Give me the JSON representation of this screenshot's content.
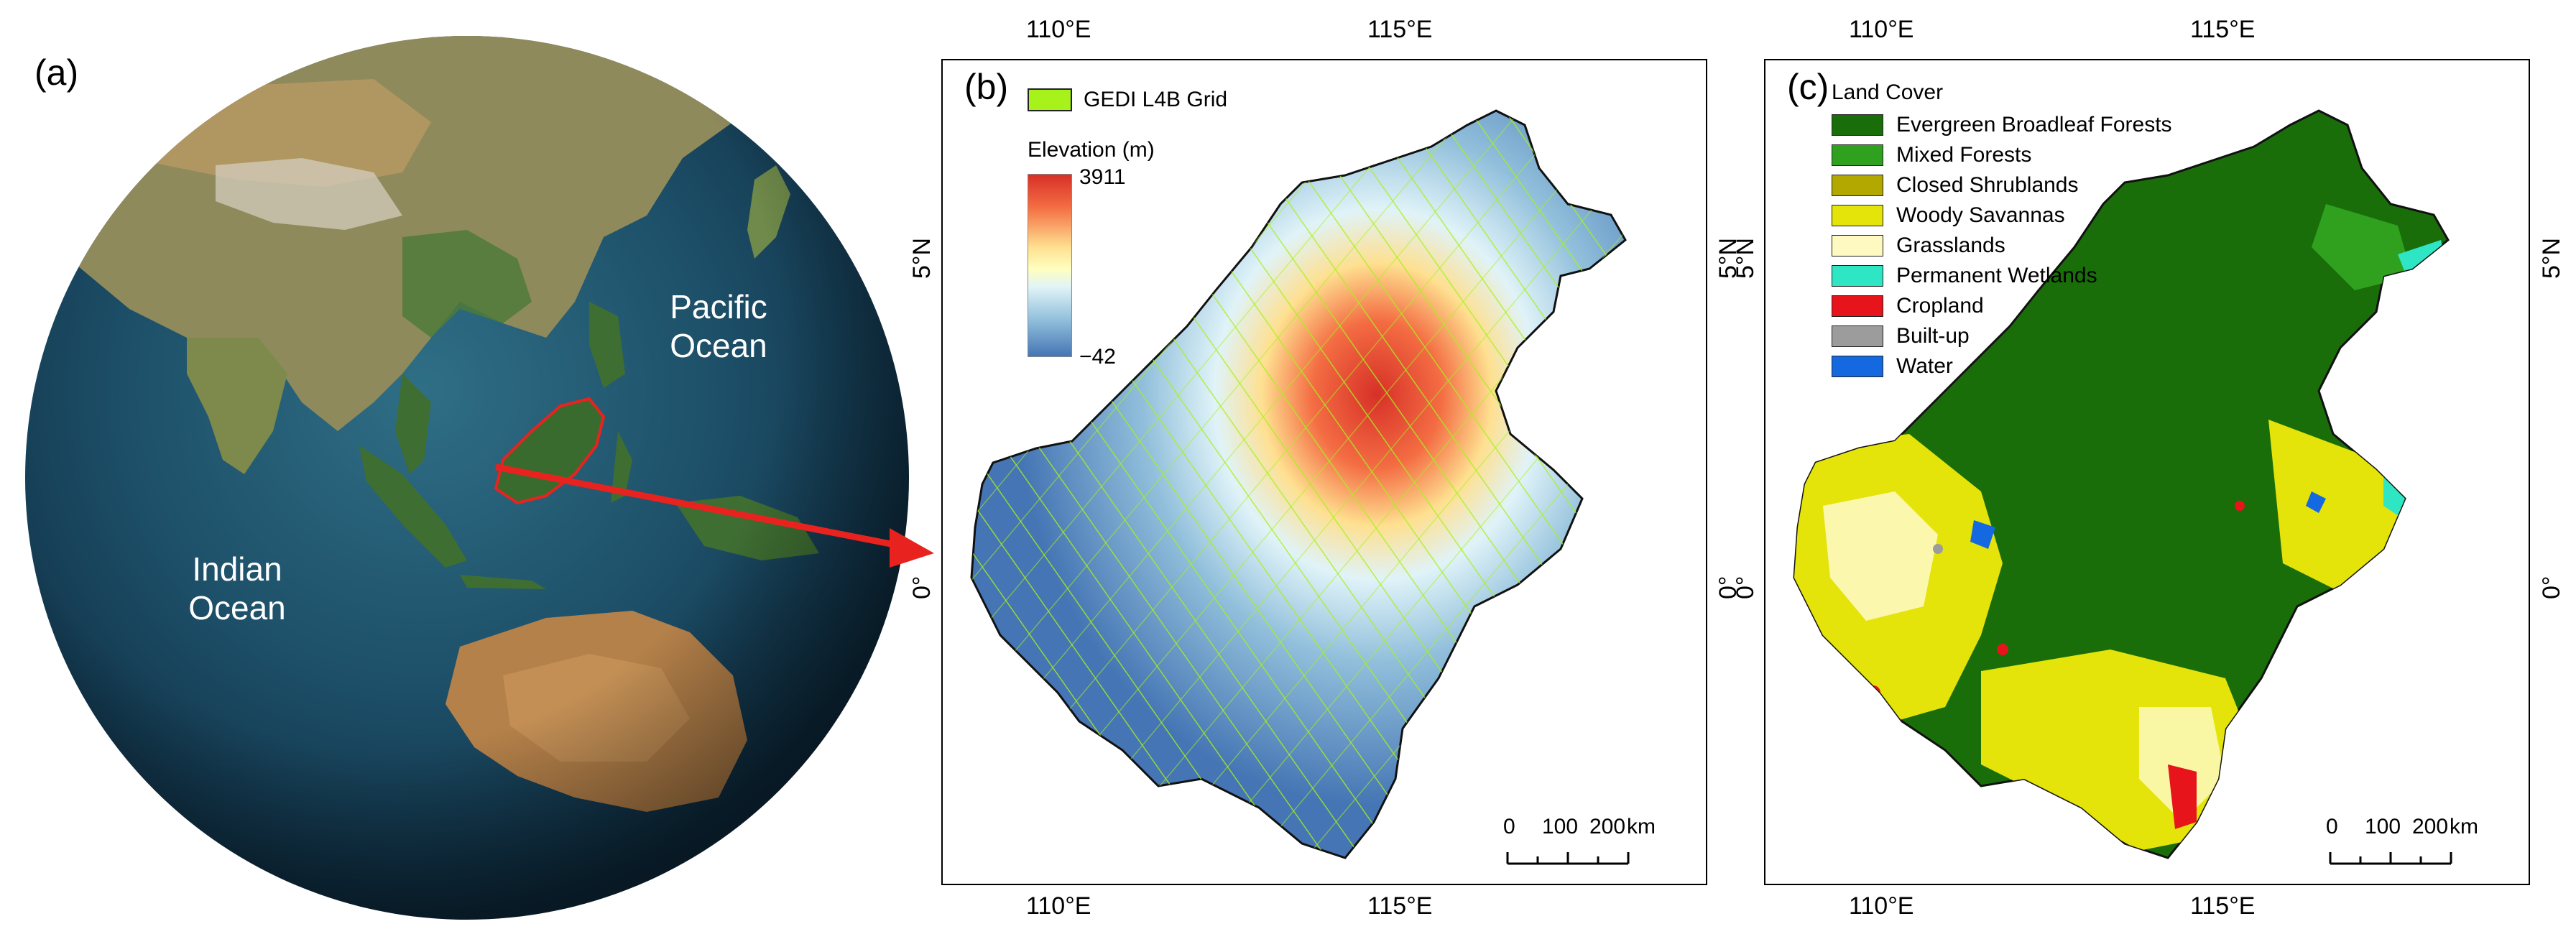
{
  "panel_a": {
    "letter": "(a)",
    "ocean_labels": {
      "pacific_line1": "Pacific",
      "pacific_line2": "Ocean",
      "indian_line1": "Indian",
      "indian_line2": "Ocean"
    },
    "highlight_color": "#e8231f"
  },
  "panel_b": {
    "letter": "(b)",
    "grid_legend_label": "GEDI L4B Grid",
    "grid_color": "#a6f21a",
    "elevation": {
      "title": "Elevation (m)",
      "max_label": "3911",
      "min_label": "−42",
      "gradient_colors": [
        "#d73027",
        "#f46d43",
        "#fee090",
        "#ffffbf",
        "#e0f3f8",
        "#91bfdb",
        "#4575b4"
      ]
    },
    "ticks": {
      "top": [
        "110°E",
        "115°E"
      ],
      "bottom": [
        "110°E",
        "115°E"
      ],
      "left": [
        "5°N",
        "0°"
      ],
      "right": [
        "5°N",
        "0°"
      ]
    },
    "scale_bar": {
      "labels": [
        "0",
        "100",
        "200"
      ],
      "unit": "km"
    }
  },
  "panel_c": {
    "letter": "(c)",
    "legend_title": "Land Cover",
    "classes": [
      {
        "label": "Evergreen Broadleaf Forests",
        "color": "#1a6e0a"
      },
      {
        "label": "Mixed Forests",
        "color": "#2fa11f"
      },
      {
        "label": "Closed Shrublands",
        "color": "#b3a800"
      },
      {
        "label": "Woody Savannas",
        "color": "#e4e30a"
      },
      {
        "label": "Grasslands",
        "color": "#fdf9c0"
      },
      {
        "label": "Permanent Wetlands",
        "color": "#2ee6c4"
      },
      {
        "label": "Cropland",
        "color": "#e8141b"
      },
      {
        "label": "Built-up",
        "color": "#9c9c9c"
      },
      {
        "label": "Water",
        "color": "#1569e0"
      }
    ],
    "ticks": {
      "top": [
        "110°E",
        "115°E"
      ],
      "bottom": [
        "110°E",
        "115°E"
      ],
      "left": [
        "5°N",
        "0°"
      ],
      "right": [
        "5°N",
        "0°"
      ]
    },
    "scale_bar": {
      "labels": [
        "0",
        "100",
        "200"
      ],
      "unit": "km"
    }
  }
}
